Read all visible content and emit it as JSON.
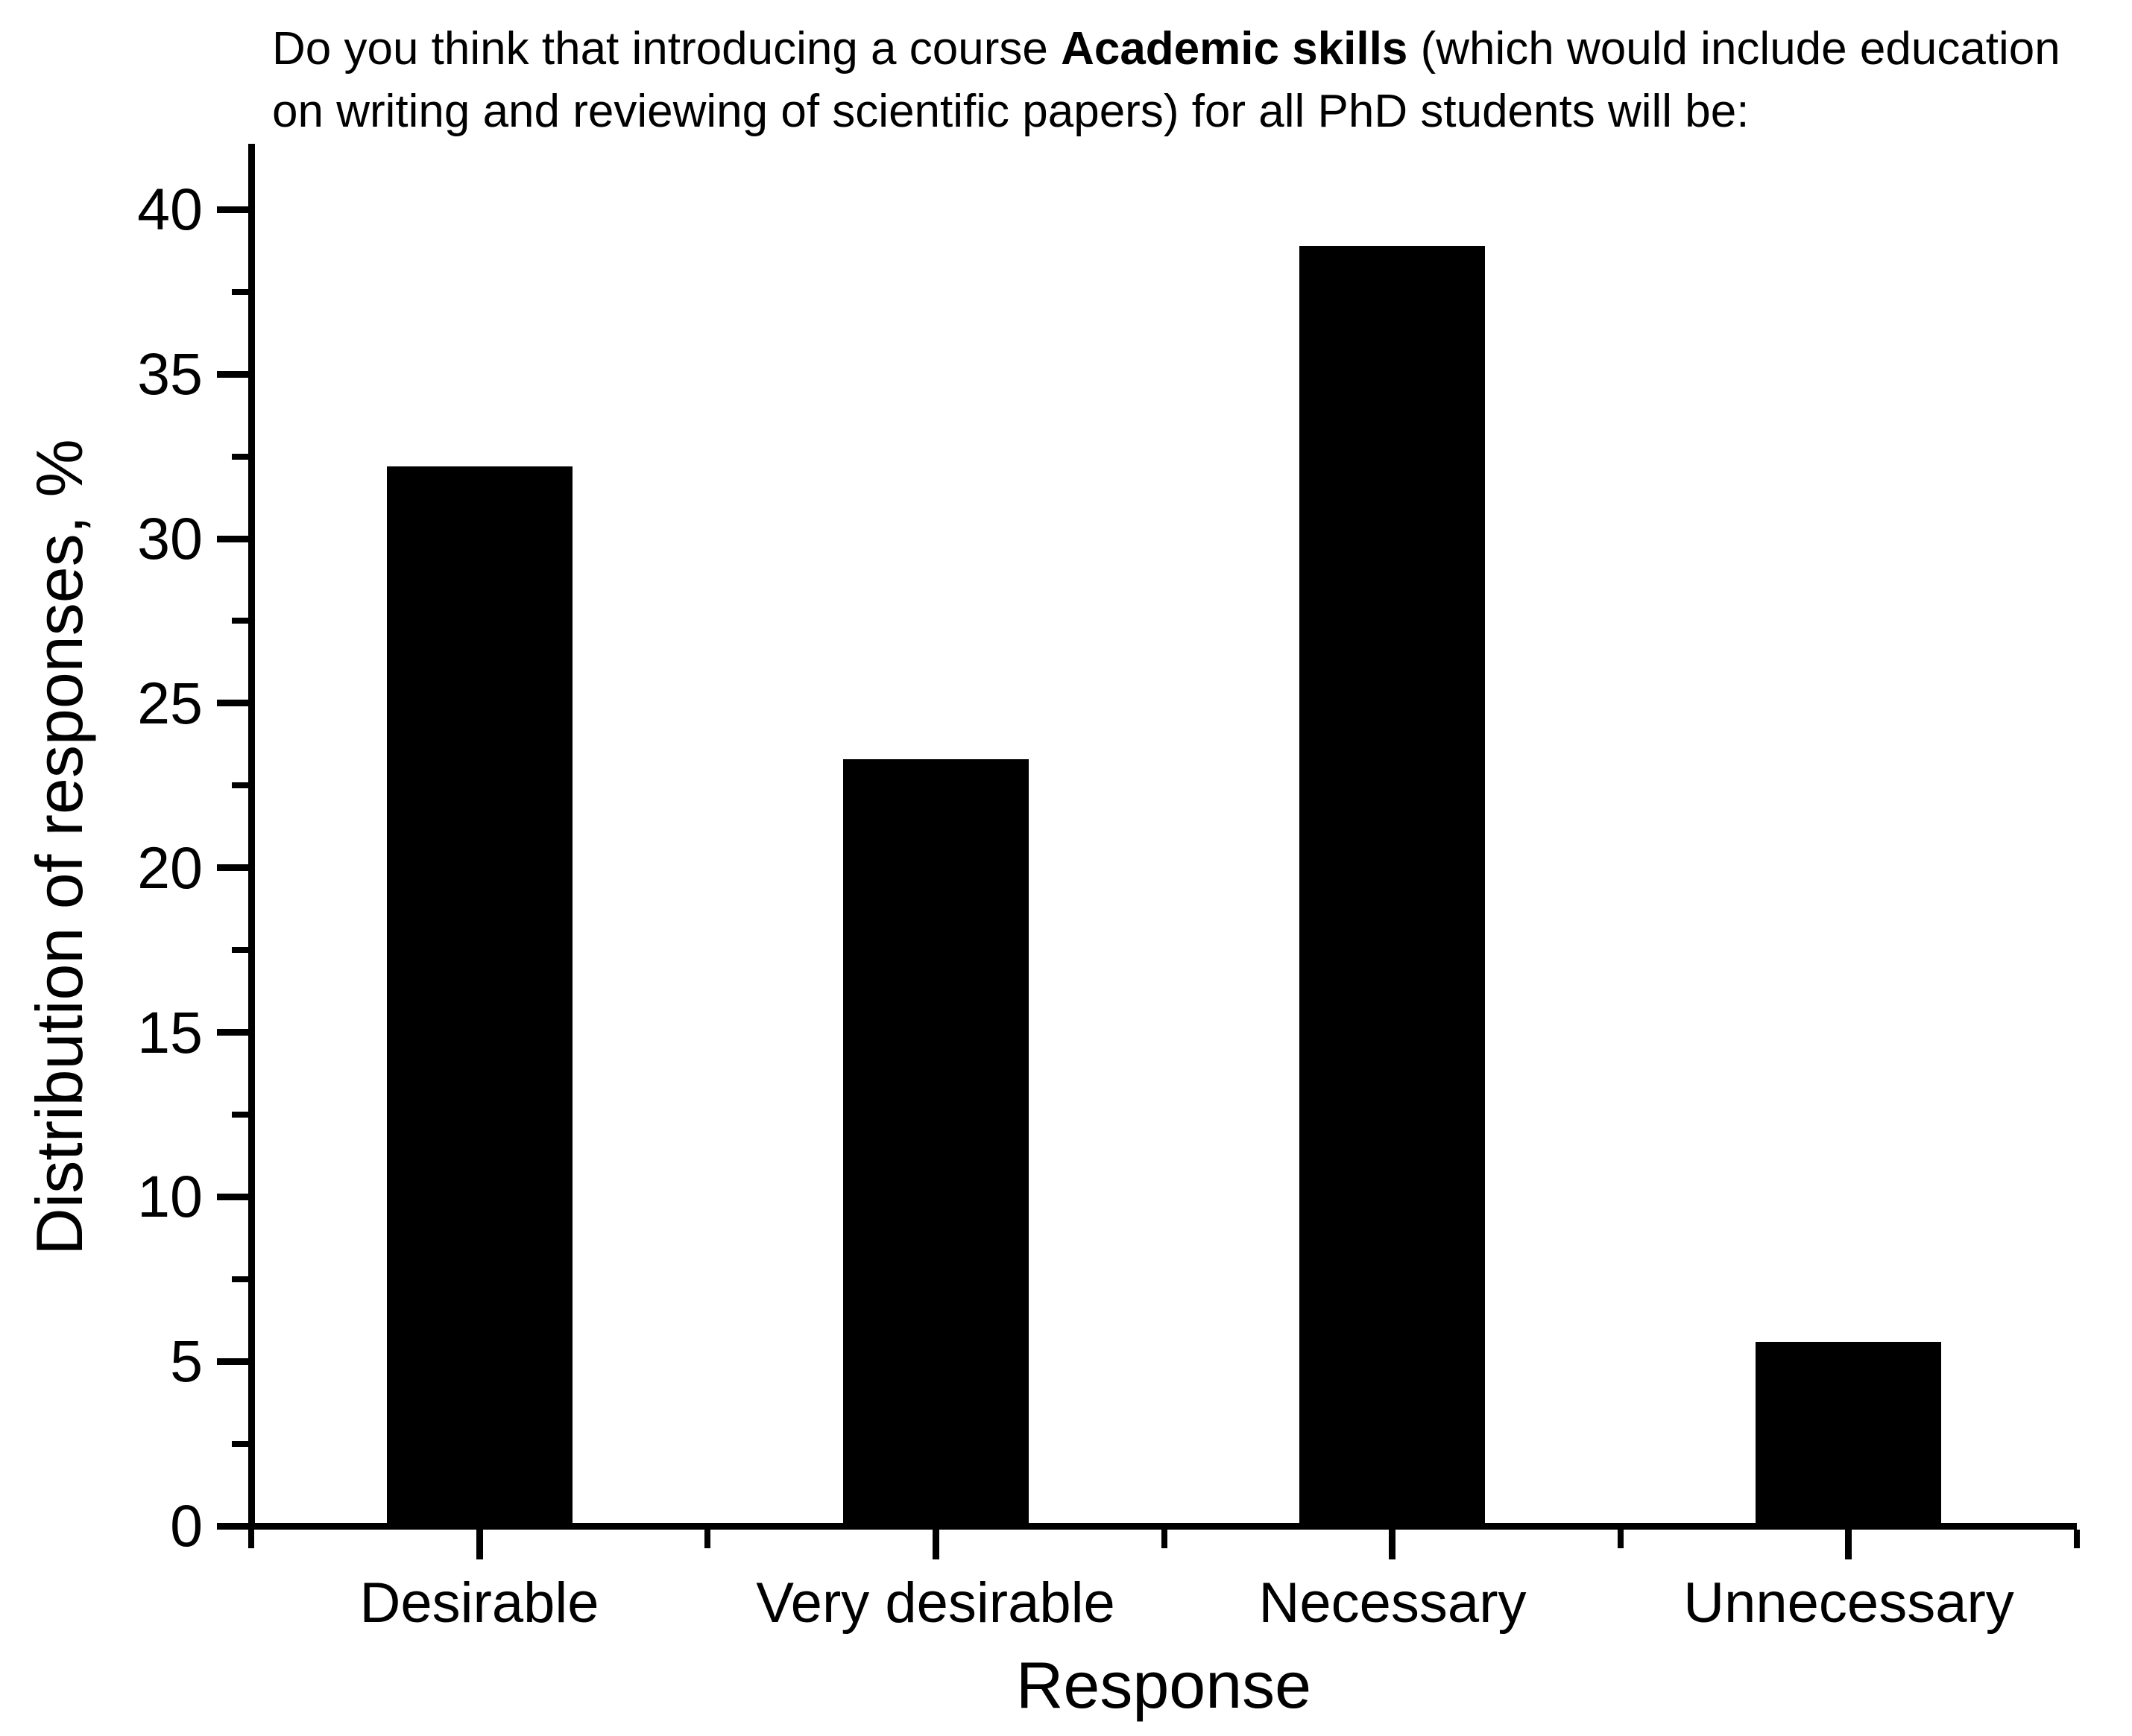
{
  "title": {
    "line1_prefix": "Do you think that introducing a course ",
    "line1_bold": "Academic skills",
    "line1_suffix": " (which would include education",
    "line2": "on writing and reviewing of scientific papers) for all PhD students will be:"
  },
  "chart_data": {
    "type": "bar",
    "title": "Do you think that introducing a course Academic skills (which would include education on writing and reviewing of scientific papers) for all PhD students will be:",
    "categories": [
      "Desirable",
      "Very desirable",
      "Necessary",
      "Unnecessary"
    ],
    "values": [
      32.2,
      23.3,
      38.9,
      5.6
    ],
    "xlabel": "Response",
    "ylabel": "Distribution of responses, %",
    "ylim": [
      0,
      42
    ],
    "y_ticks_major": [
      0,
      5,
      10,
      15,
      20,
      25,
      30,
      35,
      40
    ],
    "y_ticks_minor": [
      2.5,
      7.5,
      12.5,
      17.5,
      22.5,
      27.5,
      32.5,
      37.5
    ],
    "bar_color": "#000000",
    "axis_color": "#000000",
    "grid": false,
    "legend": false
  },
  "colors": {
    "background": "#ffffff",
    "text": "#000000"
  }
}
